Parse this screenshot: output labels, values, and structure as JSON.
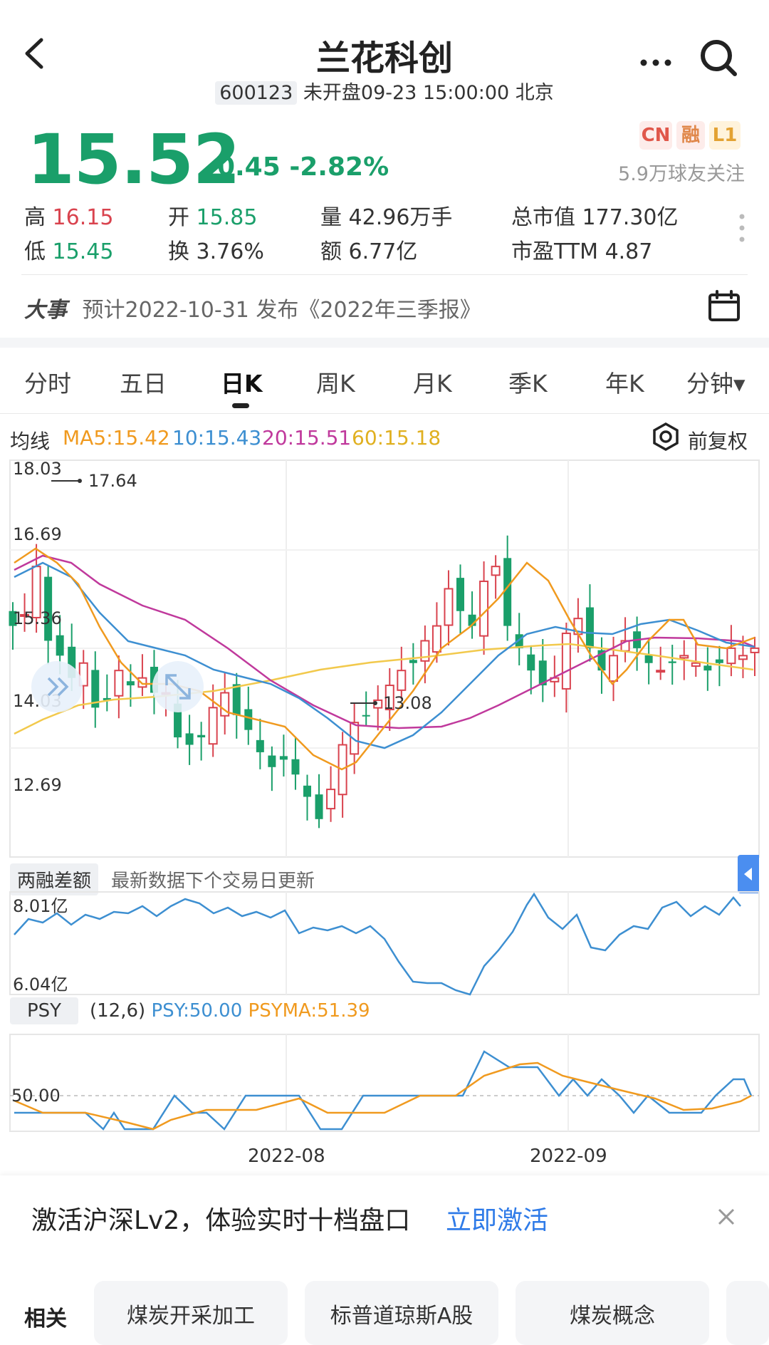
{
  "header": {
    "title": "兰花科创",
    "code": "600123",
    "status": "未开盘09-23 15:00:00 北京"
  },
  "quote": {
    "price": "15.52",
    "change": "-0.45",
    "change_pct": "-2.82%",
    "tags": [
      "CN",
      "融",
      "L1"
    ],
    "followers": "5.9万球友关注",
    "high_label": "高",
    "high": "16.15",
    "low_label": "低",
    "low": "15.45",
    "open_label": "开",
    "open": "15.85",
    "turnover_label": "换",
    "turnover": "3.76%",
    "volume_label": "量",
    "volume": "42.96万手",
    "amount_label": "额",
    "amount": "6.77亿",
    "mcap_label": "总市值",
    "mcap": "177.30亿",
    "pe_label": "市盈TTM",
    "pe": "4.87"
  },
  "event": {
    "label": "大事",
    "text": "预计2022-10-31 发布《2022年三季报》"
  },
  "tabs": [
    "分时",
    "五日",
    "日K",
    "周K",
    "月K",
    "季K",
    "年K",
    "分钟▾"
  ],
  "active_tab": "日K",
  "ma": {
    "label": "均线",
    "ma5": "MA5:15.42",
    "ma10": "10:15.43",
    "ma20": "20:15.51",
    "ma60": "60:15.18",
    "adjust": "前复权",
    "colors": {
      "ma5": "#f09a1f",
      "ma10": "#3d8fd1",
      "ma20": "#c0399c",
      "ma60": "#f2c94c"
    }
  },
  "kline": {
    "y_labels": [
      "18.03",
      "16.69",
      "15.36",
      "14.03",
      "12.69"
    ],
    "max_label": "17.64",
    "min_label": "13.08",
    "ylim": [
      12.69,
      18.03
    ]
  },
  "margin": {
    "label": "两融差额",
    "note": "最新数据下个交易日更新",
    "y_labels": [
      "8.01亿",
      "6.04亿"
    ]
  },
  "psy": {
    "label": "PSY",
    "params": "(12,6)",
    "psy": "PSY:50.00",
    "psyma": "PSYMA:51.39",
    "y_label": "50.00"
  },
  "x_labels": [
    "2022-08",
    "2022-09"
  ],
  "banner": {
    "text": "激活沪深Lv2，体验实时十档盘口",
    "action": "立即激活"
  },
  "related": {
    "label": "相关",
    "chips": [
      "煤炭开采加工",
      "标普道琼斯A股",
      "煤炭概念"
    ]
  }
}
